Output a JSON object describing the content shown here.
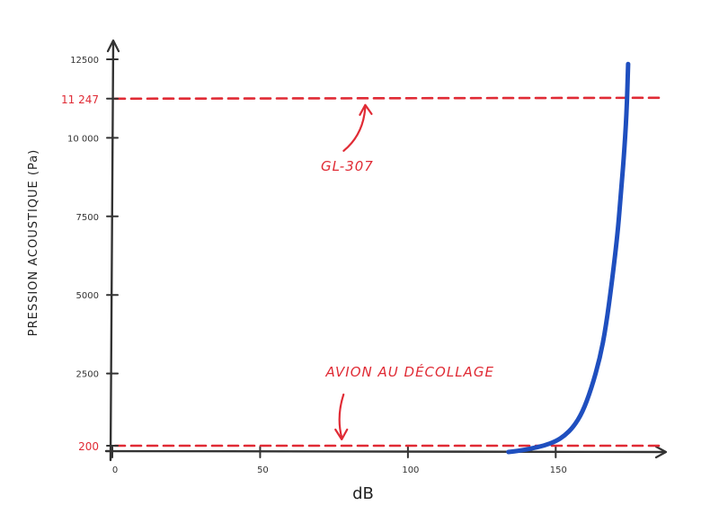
{
  "chart_data": {
    "type": "line",
    "xlabel": "dB",
    "ylabel": "PRESSION ACOUSTIQUE (Pa)",
    "xlim": [
      0,
      185
    ],
    "ylim": [
      0,
      12500
    ],
    "x_ticks": [
      {
        "value": 0,
        "label": "0"
      },
      {
        "value": 50,
        "label": "50"
      },
      {
        "value": 100,
        "label": "100"
      },
      {
        "value": 150,
        "label": "150"
      }
    ],
    "y_ticks": [
      {
        "value": 2500,
        "label": "2500"
      },
      {
        "value": 5000,
        "label": "5000"
      },
      {
        "value": 7500,
        "label": "7500"
      },
      {
        "value": 10000,
        "label": "10 000"
      },
      {
        "value": 12500,
        "label": "12500"
      }
    ],
    "series": [
      {
        "color": "#1f4fbf",
        "points": [
          [
            134,
            0
          ],
          [
            138,
            45
          ],
          [
            142,
            115
          ],
          [
            146,
            200
          ],
          [
            150,
            340
          ],
          [
            153,
            520
          ],
          [
            156,
            800
          ],
          [
            159,
            1250
          ],
          [
            162,
            2000
          ],
          [
            165,
            3000
          ],
          [
            167,
            4000
          ],
          [
            169,
            5400
          ],
          [
            171,
            7000
          ],
          [
            172,
            8200
          ],
          [
            173,
            9300
          ],
          [
            174,
            10800
          ],
          [
            174.5,
            12350
          ]
        ]
      }
    ],
    "reference_lines": [
      {
        "y": 11247,
        "tick_label": "11 247",
        "annotation": "GL-307",
        "annotation_x": 88,
        "color": "#e02b35"
      },
      {
        "y": 200,
        "tick_label": "200",
        "annotation": "AVION AU DÉCOLLAGE",
        "annotation_x": 77,
        "color": "#e02b35"
      }
    ],
    "grid": false,
    "legend": "none"
  },
  "colors": {
    "axis": "#333333",
    "curve": "#1f4fbf",
    "reference": "#e02b35"
  }
}
